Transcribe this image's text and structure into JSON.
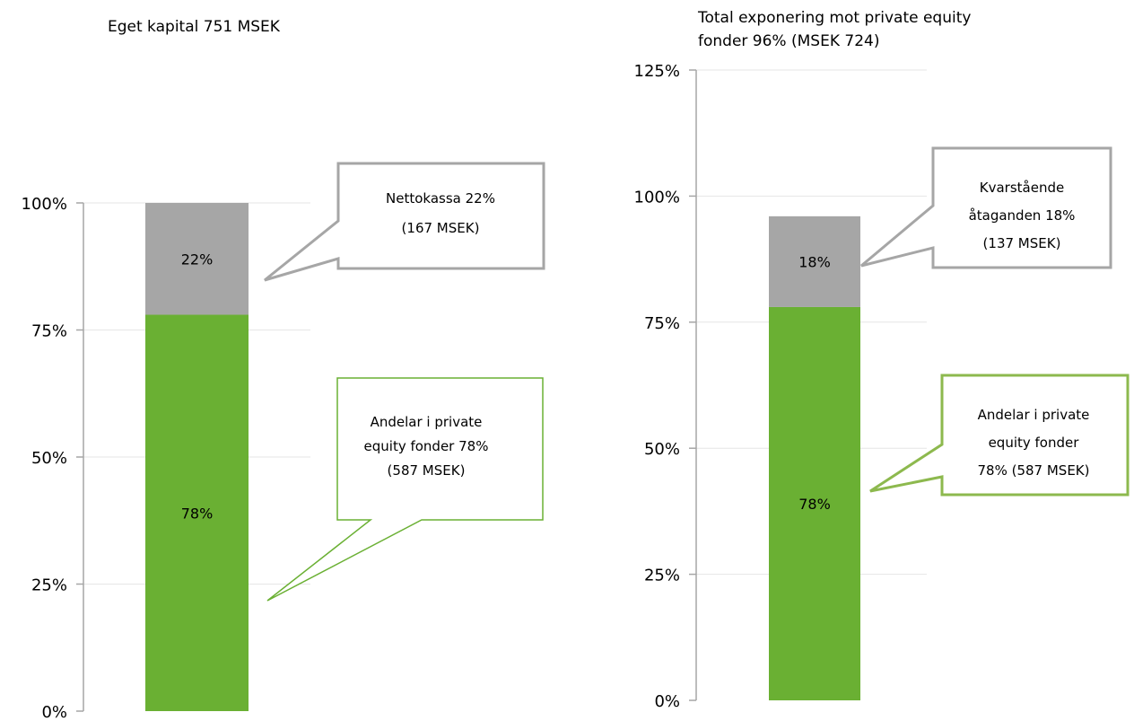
{
  "chart_data": [
    {
      "type": "bar",
      "stacked": true,
      "title": "Eget kapital 751 MSEK",
      "title_lines": [
        "Eget kapital 751 MSEK"
      ],
      "ylim": [
        0,
        1.0
      ],
      "yticks": [
        0,
        0.25,
        0.5,
        0.75,
        1.0
      ],
      "ytick_labels": [
        "0%",
        "25%",
        "50%",
        "75%",
        "100%"
      ],
      "grid": true,
      "series": [
        {
          "name": "",
          "values": [
            0.78
          ],
          "label": "78%",
          "color": "#6ab033"
        },
        {
          "name": "",
          "values": [
            0.22
          ],
          "label": "22%",
          "color": "#a6a6a6"
        }
      ],
      "callouts": [
        {
          "lines": [
            "Nettokassa 22%",
            "(167 MSEK)"
          ],
          "border_color": "#a6a6a6"
        },
        {
          "lines": [
            "Andelar i private",
            "equity fonder 78%",
            "(587 MSEK)"
          ],
          "border_color": "#6ab033"
        }
      ]
    },
    {
      "type": "bar",
      "stacked": true,
      "title": "Total exponering mot private equity fonder 96% (MSEK 724)",
      "title_lines": [
        "Total exponering mot private equity",
        "fonder 96% (MSEK 724)"
      ],
      "ylim": [
        0,
        1.25
      ],
      "yticks": [
        0,
        0.25,
        0.5,
        0.75,
        1.0,
        1.25
      ],
      "ytick_labels": [
        "0%",
        "25%",
        "50%",
        "75%",
        "100%",
        "125%"
      ],
      "grid": true,
      "series": [
        {
          "name": "",
          "values": [
            0.78
          ],
          "label": "78%",
          "color": "#6ab033"
        },
        {
          "name": "",
          "values": [
            0.18
          ],
          "label": "18%",
          "color": "#a6a6a6"
        }
      ],
      "callouts": [
        {
          "lines": [
            "Kvarstående",
            "åtaganden 18%",
            "(137 MSEK)"
          ],
          "border_color": "#a6a6a6"
        },
        {
          "lines": [
            "Andelar i private",
            "equity fonder",
            "78% (587 MSEK)"
          ],
          "border_color": "#8db94e"
        }
      ]
    }
  ]
}
